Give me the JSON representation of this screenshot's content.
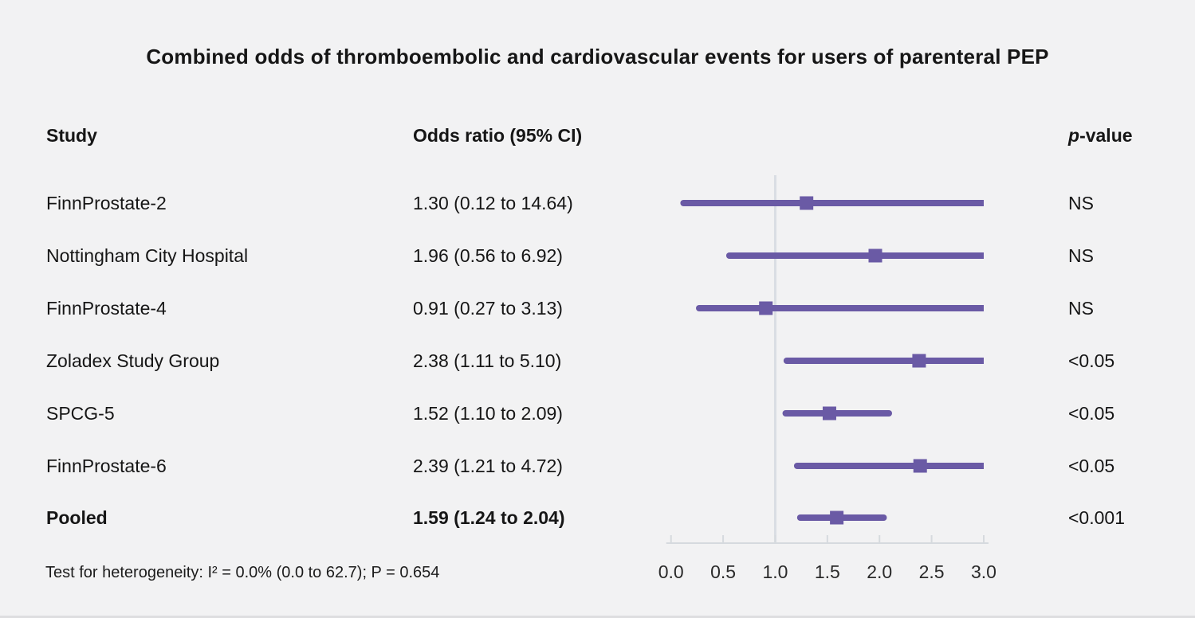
{
  "table": {
    "columns": {
      "study": "Study",
      "odds_ratio": "Odds ratio (95% CI)",
      "pvalue_prefix": "p",
      "pvalue_suffix": "-value"
    },
    "rows": [
      {
        "study": "FinnProstate-2",
        "or_text": "1.30 (0.12 to 14.64)",
        "p": "NS"
      },
      {
        "study": "Nottingham City Hospital",
        "or_text": "1.96 (0.56 to 6.92)",
        "p": "NS"
      },
      {
        "study": "FinnProstate-4",
        "or_text": "0.91 (0.27 to 3.13)",
        "p": "NS"
      },
      {
        "study": "Zoladex Study Group",
        "or_text": "2.38 (1.11 to 5.10)",
        "p": "<0.05"
      },
      {
        "study": "SPCG-5",
        "or_text": "1.52 (1.10 to 2.09)",
        "p": "<0.05"
      },
      {
        "study": "FinnProstate-6",
        "or_text": "2.39 (1.21 to 4.72)",
        "p": "<0.05"
      },
      {
        "study": "Pooled",
        "or_text": "1.59 (1.24 to 2.04)",
        "p": "<0.001"
      }
    ]
  },
  "chart_data": {
    "type": "forest",
    "title": "Combined odds of thromboembolic and cardiovascular events for users of parenteral PEP",
    "footnote": "Test for heterogeneity: I² = 0.0% (0.0 to 62.7); P = 0.654",
    "xlim": [
      0.0,
      3.0
    ],
    "x_ticks": [
      0.0,
      0.5,
      1.0,
      1.5,
      2.0,
      2.5,
      3.0
    ],
    "reference_line": 1.0,
    "clip_at_xlim": true,
    "series": [
      {
        "name": "FinnProstate-2",
        "or": 1.3,
        "ci_low": 0.12,
        "ci_high": 14.64,
        "p": "NS"
      },
      {
        "name": "Nottingham City Hospital",
        "or": 1.96,
        "ci_low": 0.56,
        "ci_high": 6.92,
        "p": "NS"
      },
      {
        "name": "FinnProstate-4",
        "or": 0.91,
        "ci_low": 0.27,
        "ci_high": 3.13,
        "p": "NS"
      },
      {
        "name": "Zoladex Study Group",
        "or": 2.38,
        "ci_low": 1.11,
        "ci_high": 5.1,
        "p": "<0.05"
      },
      {
        "name": "SPCG-5",
        "or": 1.52,
        "ci_low": 1.1,
        "ci_high": 2.09,
        "p": "<0.05"
      },
      {
        "name": "FinnProstate-6",
        "or": 2.39,
        "ci_low": 1.21,
        "ci_high": 4.72,
        "p": "<0.05"
      },
      {
        "name": "Pooled",
        "or": 1.59,
        "ci_low": 1.24,
        "ci_high": 2.04,
        "p": "<0.001"
      }
    ],
    "colors": {
      "marker": "#6a5aa5",
      "ci_line": "#6a5aa5",
      "reference_line": "#d9dde3",
      "axis": "#d6dade",
      "background": "#f2f2f3",
      "text": "#161616"
    }
  }
}
